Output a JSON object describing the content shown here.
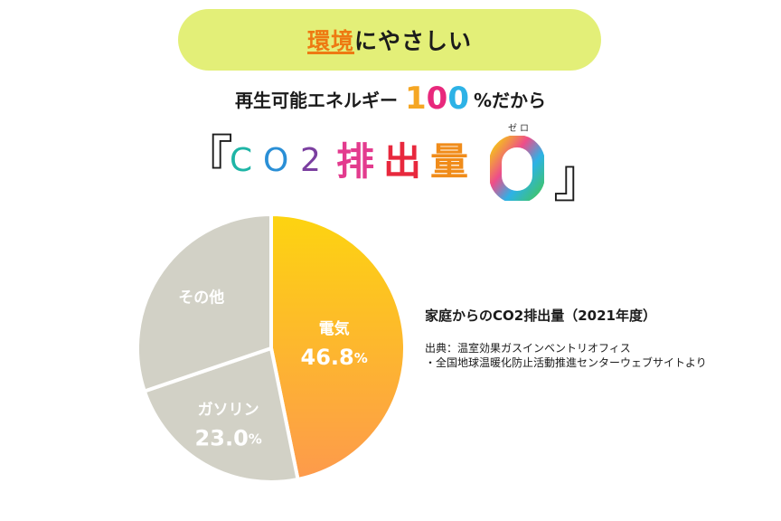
{
  "banner": {
    "accent": "環境",
    "rest": "にやさしい"
  },
  "subtitle": {
    "prefix": "再生可能エネルギー",
    "hundred_digits": [
      "1",
      "0",
      "0"
    ],
    "suffix": "%だから"
  },
  "headline": {
    "open_bracket": "『",
    "co2_chars": [
      "C",
      "O",
      "2"
    ],
    "kanji_chars": [
      "排",
      "出",
      "量"
    ],
    "zero_ruby": "ゼロ",
    "close_bracket": "』"
  },
  "colors": {
    "accent_orange": "#ee7a12",
    "pill_bg": "#e3ef78",
    "gray_slice": "#d2d1c6"
  },
  "chart_data": {
    "type": "pie",
    "title": "家庭からのCO2排出量（2021年度）",
    "slices": [
      {
        "label": "電気",
        "value": 46.8,
        "display": "46.8",
        "unit": "%"
      },
      {
        "label": "ガソリン",
        "value": 23.0,
        "display": "23.0",
        "unit": "%"
      },
      {
        "label": "その他",
        "value": 30.2,
        "display": "",
        "unit": ""
      }
    ]
  },
  "source": {
    "line1": "出典：温室効果ガスインベントリオフィス",
    "line2": "・全国地球温暖化防止活動推進センターウェブサイトより"
  }
}
